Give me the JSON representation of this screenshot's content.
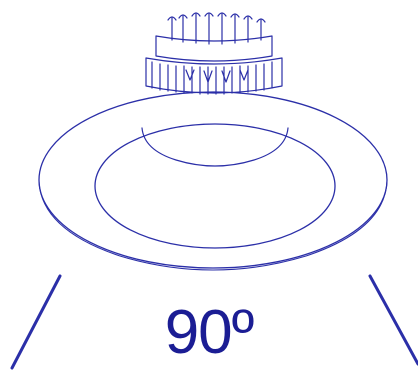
{
  "diagram": {
    "subject-icon": "recessed-downlight-icon",
    "beam_angle_label": "90º",
    "colors": {
      "line": "#2b2fa8",
      "label": "#1b1d94",
      "background": "#ffffff"
    }
  }
}
